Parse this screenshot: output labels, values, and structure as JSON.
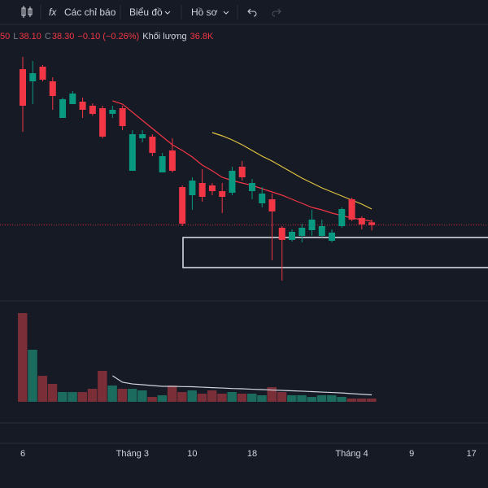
{
  "toolbar": {
    "items": [
      "Các chỉ báo",
      "Biểu đồ",
      "Hồ sơ"
    ]
  },
  "legend": {
    "items": [
      "50",
      "L",
      "38.10",
      "C",
      "38.30",
      "−0.10 (−0.26%)",
      "Khối lượng",
      "36.8K"
    ]
  },
  "chart_data": {
    "type": "candlestick",
    "categories": [
      "6",
      null,
      null,
      null,
      null,
      null,
      null,
      null,
      null,
      null,
      null,
      "Tháng 3",
      null,
      null,
      null,
      null,
      null,
      "10",
      null,
      null,
      null,
      null,
      null,
      "18",
      null,
      null,
      null,
      null,
      null,
      null,
      null,
      null,
      null,
      "Tháng 4",
      null,
      null,
      null,
      null,
      null,
      "9",
      null,
      null,
      null,
      null,
      null,
      "17"
    ],
    "open": [
      44.05,
      43.6,
      44.14,
      43.6,
      42.25,
      42.76,
      42.85,
      42.7,
      42.61,
      42.4,
      42.61,
      40.3,
      41.5,
      41.56,
      40.24,
      41.05,
      39.7,
      39.4,
      39.85,
      39.76,
      39.55,
      39.49,
      40.45,
      39.55,
      39.1,
      39.25,
      38.2,
      37.75,
      37.9,
      38.11,
      37.9,
      37.72,
      38.26,
      39.25,
      38.56,
      38.4,
      null,
      null,
      null,
      null,
      null,
      null,
      null,
      null,
      null,
      null
    ],
    "high": [
      44.5,
      44.35,
      44.2,
      43.75,
      43.0,
      43.24,
      43.0,
      42.79,
      42.7,
      42.7,
      42.7,
      41.8,
      41.8,
      41.65,
      40.96,
      41.5,
      39.76,
      40.06,
      40.36,
      39.85,
      39.85,
      40.45,
      40.66,
      40.0,
      39.7,
      39.46,
      38.26,
      38.14,
      38.35,
      38.86,
      38.5,
      38.14,
      38.95,
      39.31,
      38.62,
      38.5,
      null,
      null,
      null,
      null,
      null,
      null,
      null,
      null,
      null,
      null
    ],
    "low": [
      41.74,
      42.76,
      43.6,
      42.55,
      42.25,
      42.76,
      42.25,
      42.34,
      41.5,
      42.25,
      41.8,
      40.3,
      41.35,
      40.84,
      40.24,
      40.24,
      38.26,
      38.86,
      39.16,
      39.4,
      38.74,
      39.4,
      39.94,
      39.25,
      38.95,
      37.0,
      36.25,
      37.69,
      37.66,
      37.9,
      37.84,
      37.66,
      38.2,
      38.44,
      38.14,
      38.1,
      null,
      null,
      null,
      null,
      null,
      null,
      null,
      null,
      null,
      null
    ],
    "close": [
      42.7,
      43.9,
      43.66,
      43.06,
      42.94,
      43.15,
      42.55,
      42.4,
      41.56,
      42.55,
      41.95,
      41.65,
      41.65,
      40.96,
      40.84,
      40.3,
      38.35,
      39.94,
      39.34,
      39.55,
      39.34,
      40.3,
      40.06,
      39.85,
      39.46,
      38.8,
      37.75,
      38.05,
      38.2,
      38.5,
      38.26,
      38.02,
      38.89,
      38.5,
      38.32,
      38.3,
      null,
      null,
      null,
      null,
      null,
      null,
      null,
      null,
      null,
      null
    ],
    "volume": [
      1003,
      589,
      294,
      202,
      110,
      110,
      110,
      147,
      350,
      184,
      147,
      147,
      129,
      55,
      74,
      184,
      110,
      129,
      92,
      129,
      92,
      110,
      92,
      92,
      74,
      166,
      110,
      74,
      74,
      55,
      74,
      74,
      55,
      37,
      37,
      36.8,
      null,
      null,
      null,
      null,
      null,
      null,
      null,
      null,
      null,
      null
    ],
    "lines": [
      {
        "color": "#f23645",
        "values": [
          null,
          null,
          null,
          null,
          null,
          null,
          null,
          null,
          null,
          42.88,
          42.76,
          42.46,
          42.16,
          41.86,
          41.56,
          41.26,
          41.05,
          40.81,
          40.51,
          40.3,
          40.06,
          39.94,
          39.85,
          39.76,
          39.64,
          39.52,
          39.4,
          39.25,
          39.1,
          38.95,
          38.86,
          38.74,
          38.65,
          38.56,
          38.5,
          38.44,
          null,
          null,
          null,
          null,
          null,
          null,
          null,
          null,
          null,
          null
        ]
      },
      {
        "color": "#e0c341",
        "values": [
          null,
          null,
          null,
          null,
          null,
          null,
          null,
          null,
          null,
          null,
          null,
          null,
          null,
          null,
          null,
          null,
          null,
          null,
          null,
          41.71,
          41.59,
          41.44,
          41.26,
          41.05,
          40.84,
          40.66,
          40.45,
          40.24,
          40.03,
          39.85,
          39.67,
          39.52,
          39.37,
          39.22,
          39.07,
          38.89,
          null,
          null,
          null,
          null,
          null,
          null,
          null,
          null,
          null,
          null
        ]
      }
    ],
    "volume_line": {
      "color": "#d1d4dc",
      "values": [
        null,
        null,
        null,
        null,
        null,
        null,
        null,
        null,
        null,
        294,
        221,
        202,
        193,
        184,
        175,
        175,
        172,
        170,
        165,
        160,
        156,
        150,
        147,
        142,
        138,
        133,
        129,
        124,
        120,
        115,
        110,
        105,
        100,
        92,
        85,
        78,
        null,
        null,
        null,
        null,
        null,
        null,
        null,
        null,
        null,
        null
      ]
    },
    "up_color": "#089981",
    "down_color": "#f23645",
    "up_volume_color": "#1b6b5e",
    "down_volume_color": "#7a2e38",
    "ylim": [
      35.5,
      45.4
    ],
    "volume_ylim": [
      0,
      1012
    ]
  }
}
